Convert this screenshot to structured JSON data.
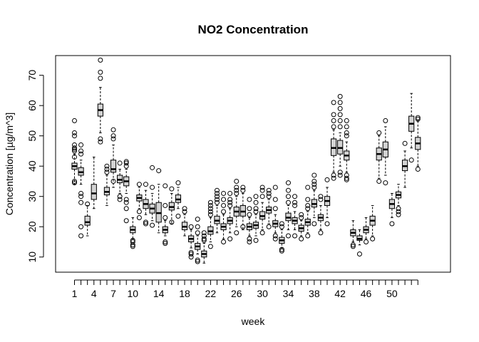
{
  "chart_data": {
    "type": "boxplot",
    "title": "NO2 Concentration",
    "xlabel": "week",
    "ylabel": "Concentration [µg/m^3]",
    "x_tick_labels": [
      "1",
      "4",
      "7",
      "10",
      "14",
      "18",
      "22",
      "26",
      "30",
      "34",
      "38",
      "42",
      "46",
      "50"
    ],
    "x_tick_weeks": [
      1,
      4,
      7,
      10,
      14,
      18,
      22,
      26,
      30,
      34,
      38,
      42,
      46,
      50
    ],
    "y_ticks": [
      10,
      20,
      30,
      40,
      50,
      60,
      70
    ],
    "ylim": [
      5,
      76.5
    ],
    "box_fill": "#d3d3d3",
    "boxes": [
      {
        "week": 1,
        "min": 34,
        "q1": 39,
        "median": 40,
        "q3": 41,
        "max": 44,
        "outliers": [
          34.5,
          35,
          43,
          45,
          45.5,
          46,
          47,
          50,
          51,
          55
        ]
      },
      {
        "week": 2,
        "min": 34,
        "q1": 37,
        "median": 38,
        "q3": 39.5,
        "max": 42,
        "outliers": [
          17,
          20,
          28,
          30,
          31,
          44,
          45,
          47
        ]
      },
      {
        "week": 3,
        "min": 17,
        "q1": 20.5,
        "median": 21.5,
        "q3": 23.5,
        "max": 27,
        "outliers": [
          27.5
        ]
      },
      {
        "week": 4,
        "min": 26,
        "q1": 29,
        "median": 31,
        "q3": 34,
        "max": 43,
        "outliers": []
      },
      {
        "week": 5,
        "min": 51,
        "q1": 56.5,
        "median": 58.5,
        "q3": 60.5,
        "max": 66,
        "outliers": [
          48,
          49,
          69,
          71,
          75
        ]
      },
      {
        "week": 6,
        "min": 27,
        "q1": 30.5,
        "median": 31.5,
        "q3": 33,
        "max": 37,
        "outliers": [
          38,
          39,
          40
        ]
      },
      {
        "week": 7,
        "min": 33,
        "q1": 38,
        "median": 39,
        "q3": 42,
        "max": 47,
        "outliers": [
          35,
          49,
          50,
          52
        ]
      },
      {
        "week": 8,
        "min": 31,
        "q1": 34.5,
        "median": 35.5,
        "q3": 37,
        "max": 39,
        "outliers": [
          29,
          30,
          41
        ]
      },
      {
        "week": 9,
        "min": 31,
        "q1": 33.5,
        "median": 35,
        "q3": 36.5,
        "max": 39,
        "outliers": [
          22,
          26,
          28,
          29,
          40,
          41,
          41.5
        ]
      },
      {
        "week": 10,
        "min": 16,
        "q1": 18,
        "median": 19,
        "q3": 20,
        "max": 23,
        "outliers": [
          13.5,
          14,
          15,
          15.5
        ]
      },
      {
        "week": 11,
        "min": 26,
        "q1": 28.5,
        "median": 29.5,
        "q3": 30.5,
        "max": 33,
        "outliers": [
          23,
          25,
          34
        ]
      },
      {
        "week": 12,
        "min": 24,
        "q1": 26,
        "median": 27.5,
        "q3": 29,
        "max": 32,
        "outliers": [
          21,
          21.5,
          34
        ]
      },
      {
        "week": 13,
        "min": 22,
        "q1": 24.5,
        "median": 26,
        "q3": 27.5,
        "max": 31,
        "outliers": [
          20.5,
          33,
          39.5
        ]
      },
      {
        "week": 14,
        "min": 18,
        "q1": 21.5,
        "median": 24.5,
        "q3": 28,
        "max": 34,
        "outliers": [
          38.5
        ]
      },
      {
        "week": 15,
        "min": 17,
        "q1": 18,
        "median": 19,
        "q3": 20,
        "max": 22,
        "outliers": [
          14.5,
          15,
          23,
          27,
          33.5
        ]
      },
      {
        "week": 16,
        "min": 21,
        "q1": 25.5,
        "median": 26.5,
        "q3": 28,
        "max": 31,
        "outliers": [
          21.5,
          32.5
        ]
      },
      {
        "week": 17,
        "min": 26,
        "q1": 28,
        "median": 29,
        "q3": 30.5,
        "max": 33,
        "outliers": [
          23.5,
          34.5
        ]
      },
      {
        "week": 18,
        "min": 17,
        "q1": 19,
        "median": 20,
        "q3": 21.5,
        "max": 24,
        "outliers": [
          25,
          26
        ]
      },
      {
        "week": 19,
        "min": 13,
        "q1": 15,
        "median": 16,
        "q3": 17,
        "max": 19,
        "outliers": [
          10,
          11,
          11.5,
          20
        ]
      },
      {
        "week": 20,
        "min": 11,
        "q1": 12.5,
        "median": 13.5,
        "q3": 14.5,
        "max": 17,
        "outliers": [
          8.5,
          9,
          18,
          20,
          22.5
        ]
      },
      {
        "week": 21,
        "min": 8,
        "q1": 10,
        "median": 11,
        "q3": 12,
        "max": 14.5,
        "outliers": [
          15.5,
          16,
          17,
          18
        ]
      },
      {
        "week": 22,
        "min": 15,
        "q1": 17.5,
        "median": 18.5,
        "q3": 20,
        "max": 23,
        "outliers": [
          13.5,
          24,
          25,
          26,
          27,
          28
        ]
      },
      {
        "week": 23,
        "min": 18,
        "q1": 21,
        "median": 22,
        "q3": 23.5,
        "max": 27,
        "outliers": [
          28,
          29,
          30,
          31,
          32
        ]
      },
      {
        "week": 24,
        "min": 16,
        "q1": 19,
        "median": 20,
        "q3": 21,
        "max": 24,
        "outliers": [
          15,
          25,
          27,
          29,
          31
        ]
      },
      {
        "week": 25,
        "min": 18,
        "q1": 21,
        "median": 22,
        "q3": 23,
        "max": 26,
        "outliers": [
          16,
          27,
          28,
          29,
          31
        ]
      },
      {
        "week": 26,
        "min": 20,
        "q1": 23.5,
        "median": 25,
        "q3": 26.5,
        "max": 30,
        "outliers": [
          18,
          31,
          32,
          33,
          35
        ]
      },
      {
        "week": 27,
        "min": 19,
        "q1": 23.5,
        "median": 25,
        "q3": 27,
        "max": 31,
        "outliers": [
          20,
          32,
          33
        ]
      },
      {
        "week": 28,
        "min": 17,
        "q1": 19,
        "median": 20,
        "q3": 21,
        "max": 23,
        "outliers": [
          15,
          16,
          24,
          26,
          29
        ]
      },
      {
        "week": 29,
        "min": 17,
        "q1": 19.5,
        "median": 20.5,
        "q3": 21.5,
        "max": 24,
        "outliers": [
          15.5,
          25,
          26,
          28,
          30
        ]
      },
      {
        "week": 30,
        "min": 19,
        "q1": 22.5,
        "median": 23.5,
        "q3": 25,
        "max": 28,
        "outliers": [
          18,
          30,
          32,
          33
        ]
      },
      {
        "week": 31,
        "min": 21,
        "q1": 24.5,
        "median": 25.5,
        "q3": 26.5,
        "max": 29,
        "outliers": [
          20,
          30,
          31,
          32
        ]
      },
      {
        "week": 32,
        "min": 18,
        "q1": 20,
        "median": 21,
        "q3": 22,
        "max": 24,
        "outliers": [
          16,
          17,
          26,
          29,
          33
        ]
      },
      {
        "week": 33,
        "min": 13,
        "q1": 14.5,
        "median": 15.5,
        "q3": 16.5,
        "max": 19,
        "outliers": [
          12,
          12.5,
          20,
          21
        ]
      },
      {
        "week": 34,
        "min": 19,
        "q1": 22,
        "median": 23,
        "q3": 24.5,
        "max": 27,
        "outliers": [
          17,
          28,
          30,
          32,
          34.5
        ]
      },
      {
        "week": 35,
        "min": 19,
        "q1": 21,
        "median": 22,
        "q3": 23,
        "max": 25,
        "outliers": [
          17,
          27,
          28,
          30
        ]
      },
      {
        "week": 36,
        "min": 17,
        "q1": 18.5,
        "median": 19.5,
        "q3": 20.5,
        "max": 22,
        "outliers": [
          16,
          23,
          24
        ]
      },
      {
        "week": 37,
        "min": 18,
        "q1": 20.5,
        "median": 21.5,
        "q3": 22.5,
        "max": 25,
        "outliers": [
          17,
          26,
          27,
          29,
          33
        ]
      },
      {
        "week": 38,
        "min": 23,
        "q1": 26.5,
        "median": 27.5,
        "q3": 29,
        "max": 32,
        "outliers": [
          21,
          33,
          34,
          35,
          37
        ]
      },
      {
        "week": 39,
        "min": 19,
        "q1": 22,
        "median": 23,
        "q3": 24,
        "max": 27,
        "outliers": [
          18,
          29,
          30
        ]
      },
      {
        "week": 40,
        "min": 23,
        "q1": 27,
        "median": 28.5,
        "q3": 30,
        "max": 33,
        "outliers": [
          21,
          35.5
        ]
      },
      {
        "week": 41,
        "min": 38,
        "q1": 43.5,
        "median": 46,
        "q3": 49,
        "max": 52,
        "outliers": [
          36,
          37,
          53,
          55,
          57,
          61
        ]
      },
      {
        "week": 42,
        "min": 40,
        "q1": 44,
        "median": 46,
        "q3": 48.5,
        "max": 51,
        "outliers": [
          37,
          38,
          53,
          55,
          57,
          59,
          61,
          63
        ]
      },
      {
        "week": 43,
        "min": 38,
        "q1": 42,
        "median": 43.5,
        "q3": 45,
        "max": 48,
        "outliers": [
          35.5,
          36,
          37,
          50,
          51,
          53,
          55
        ]
      },
      {
        "week": 44,
        "min": 15,
        "q1": 17,
        "median": 18,
        "q3": 19,
        "max": 22,
        "outliers": [
          13.5,
          14
        ]
      },
      {
        "week": 45,
        "min": 14,
        "q1": 15.5,
        "median": 16,
        "q3": 17,
        "max": 19,
        "outliers": [
          11
        ]
      },
      {
        "week": 46,
        "min": 16,
        "q1": 18,
        "median": 19,
        "q3": 20,
        "max": 23,
        "outliers": [
          15
        ]
      },
      {
        "week": 47,
        "min": 17,
        "q1": 20.5,
        "median": 22,
        "q3": 23.5,
        "max": 27,
        "outliers": [
          16
        ]
      },
      {
        "week": 48,
        "min": 36,
        "q1": 42,
        "median": 44,
        "q3": 46,
        "max": 50,
        "outliers": [
          35,
          51
        ]
      },
      {
        "week": 49,
        "min": 37,
        "q1": 43,
        "median": 45.5,
        "q3": 48,
        "max": 53,
        "outliers": [
          34.5,
          55
        ]
      },
      {
        "week": 50,
        "min": 23,
        "q1": 26,
        "median": 27.5,
        "q3": 29,
        "max": 31,
        "outliers": [
          21
        ]
      },
      {
        "week": 51,
        "min": 27,
        "q1": 29.5,
        "median": 30.5,
        "q3": 31.5,
        "max": 34,
        "outliers": [
          24,
          25,
          26
        ]
      },
      {
        "week": 52,
        "min": 33,
        "q1": 38.5,
        "median": 40,
        "q3": 42,
        "max": 45,
        "outliers": [
          47.5
        ]
      },
      {
        "week": 53,
        "min": 46,
        "q1": 51.5,
        "median": 54,
        "q3": 56.5,
        "max": 64,
        "outliers": [
          42
        ]
      },
      {
        "week": 54,
        "min": 40,
        "q1": 45.5,
        "median": 47.5,
        "q3": 49.5,
        "max": 55,
        "outliers": [
          39,
          55.5,
          56
        ]
      }
    ]
  }
}
